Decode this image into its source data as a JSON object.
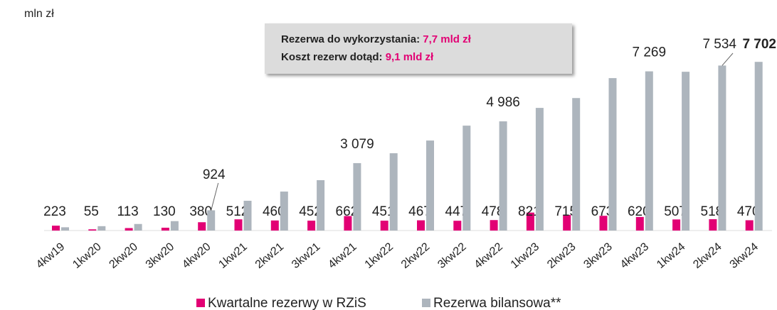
{
  "chart_data": {
    "type": "bar",
    "ylabel": "mln zł",
    "categories": [
      "4kw19",
      "1kw20",
      "2kw20",
      "3kw20",
      "4kw20",
      "1kw21",
      "2kw21",
      "3kw21",
      "4kw21",
      "1kw22",
      "2kw22",
      "3kw22",
      "4kw22",
      "1kw23",
      "2kw23",
      "3kw23",
      "4kw23",
      "1kw24",
      "2kw24",
      "3kw24"
    ],
    "series": [
      {
        "name": "Kwartalne rezerwy w RZiS",
        "color": "#e20074",
        "values": [
          223,
          55,
          113,
          130,
          380,
          512,
          460,
          452,
          662,
          451,
          467,
          447,
          478,
          821,
          715,
          673,
          620,
          507,
          518,
          470
        ]
      },
      {
        "name": "Rezerwa bilansowa**",
        "color": "#adb5bd",
        "values": [
          150,
          200,
          300,
          430,
          924,
          1360,
          1780,
          2300,
          3079,
          3530,
          4110,
          4790,
          4986,
          5600,
          6050,
          6960,
          7269,
          7250,
          7534,
          7702
        ],
        "value_labels": [
          null,
          null,
          null,
          null,
          "924",
          null,
          null,
          null,
          "3 079",
          null,
          null,
          null,
          "4 986",
          null,
          null,
          null,
          "7 269",
          null,
          "7 534",
          "7 702"
        ]
      }
    ],
    "ylim": [
      0,
      8000
    ],
    "annotations": [
      {
        "label": "Rezerwa do wykorzystania:",
        "value": "7,7 mld zł"
      },
      {
        "label": "Koszt rezerw dotąd:",
        "value": "9,1 mld zł"
      }
    ]
  }
}
